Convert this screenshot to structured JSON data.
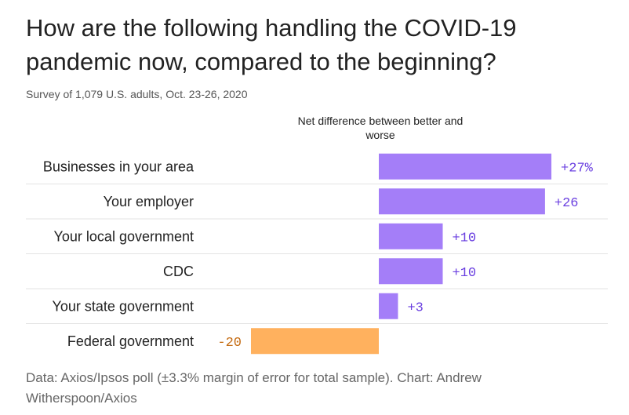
{
  "header": {
    "title": "How are the following handling the COVID-19 pandemic now, compared to the beginning?",
    "subtitle": "Survey of 1,079 U.S. adults, Oct. 23-26, 2020",
    "column_header": "Net difference between better and worse"
  },
  "footer": {
    "source": "Data: Axios/Ipsos poll (±3.3% margin of error for total sample). Chart: Andrew Witherspoon/Axios"
  },
  "chart_data": {
    "type": "bar",
    "orientation": "horizontal",
    "title": "How are the following handling the COVID-19 pandemic now, compared to the beginning?",
    "subtitle": "Survey of 1,079 U.S. adults, Oct. 23-26, 2020",
    "value_label": "Net difference between better and worse",
    "categories": [
      "Businesses in your area",
      "Your employer",
      "Your local government",
      "CDC",
      "Your state government",
      "Federal government"
    ],
    "values": [
      27,
      26,
      10,
      10,
      3,
      -20
    ],
    "data_labels": [
      "+27%",
      "+26",
      "+10",
      "+10",
      "+3",
      "-20"
    ],
    "colors": {
      "positive": "#a47ef8",
      "negative": "#ffb15e",
      "positive_text": "#6a3fe0",
      "negative_text": "#c46a10",
      "gridline": "#e3e3e3"
    },
    "grid": false,
    "legend": "none"
  }
}
